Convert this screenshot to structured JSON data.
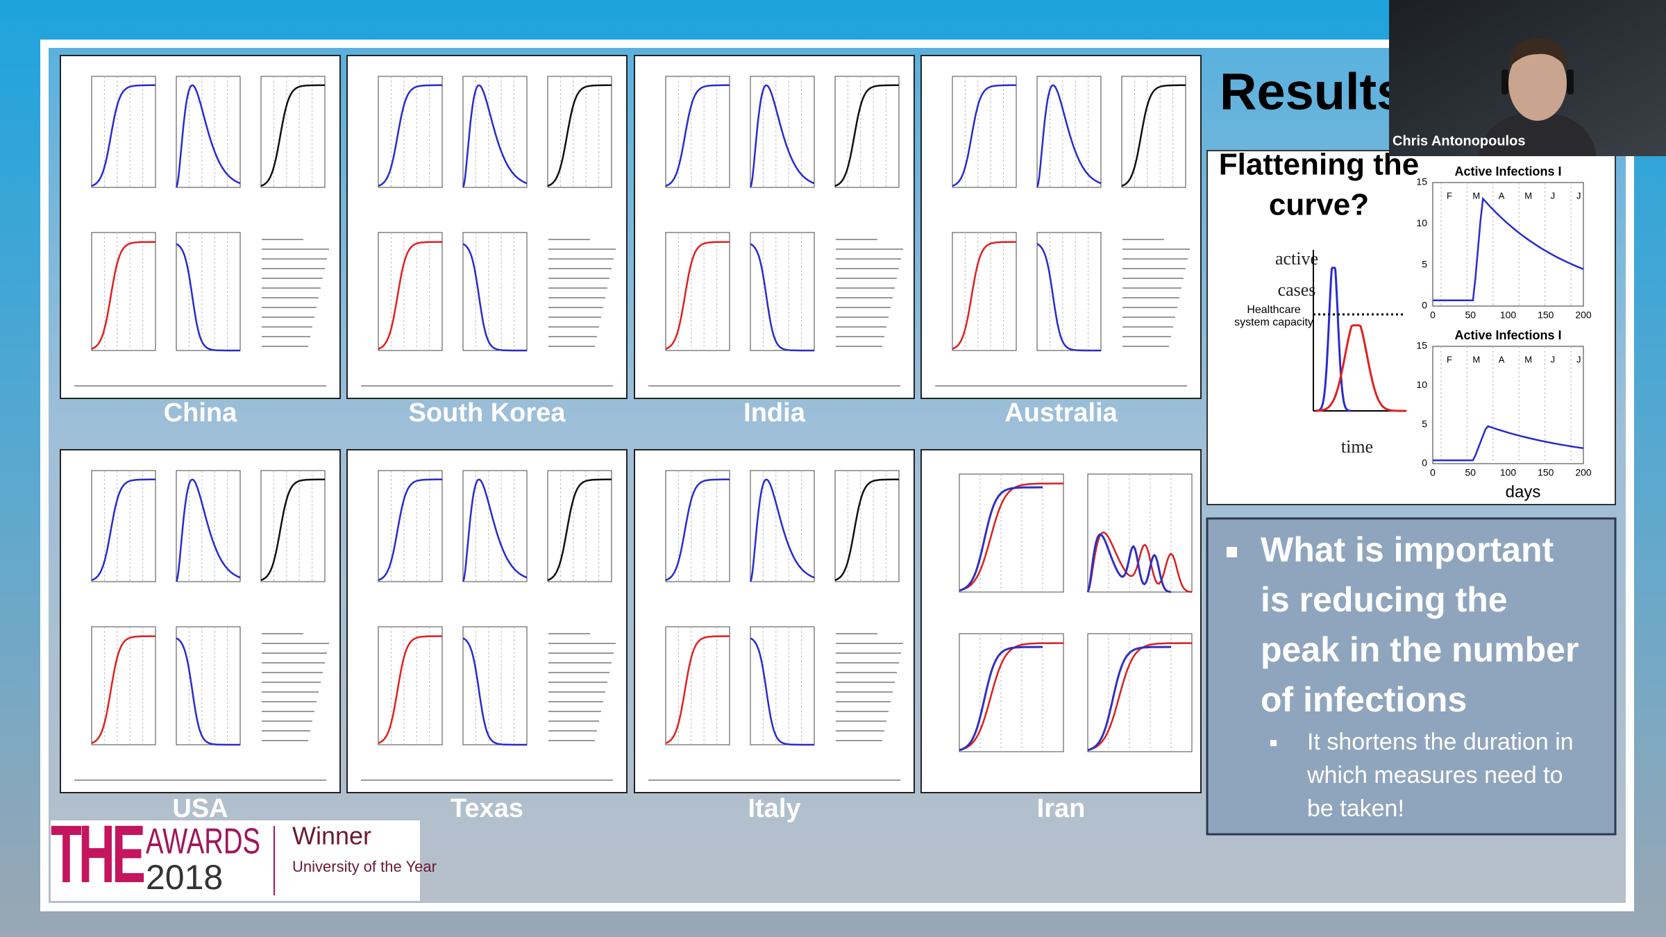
{
  "slide": {
    "title": "Results",
    "panels": [
      {
        "label": "China"
      },
      {
        "label": "South Korea"
      },
      {
        "label": "India"
      },
      {
        "label": "Australia"
      },
      {
        "label": "USA"
      },
      {
        "label": "Texas"
      },
      {
        "label": "Italy"
      },
      {
        "label": "Iran"
      }
    ],
    "flattening": {
      "title_lines": [
        "Flattening the",
        "curve?"
      ],
      "y_label_lines": [
        "active",
        "cases"
      ],
      "capacity_lines": [
        "Healthcare",
        "system capacity"
      ],
      "x_label": "time",
      "plots": [
        {
          "title": "Active Infections I",
          "months": [
            "F",
            "M",
            "A",
            "M",
            "J",
            "J"
          ],
          "xticks": [
            "0",
            "50",
            "100",
            "150",
            "200"
          ],
          "yticks": [
            "15",
            "10",
            "5",
            "0"
          ]
        },
        {
          "title": "Active Infections I",
          "months": [
            "F",
            "M",
            "A",
            "M",
            "J",
            "J"
          ],
          "xticks": [
            "0",
            "50",
            "100",
            "150",
            "200"
          ],
          "yticks": [
            "15",
            "10",
            "5",
            "0"
          ]
        }
      ],
      "days_label": "days"
    },
    "bullet": {
      "lines": [
        "What is important",
        "is reducing the",
        "peak in the number",
        "of infections"
      ],
      "sub_lines": [
        "It shortens the duration in",
        "which measures need to",
        "be taken!"
      ]
    },
    "award": {
      "brand": "THE",
      "awards": "AWARDS",
      "year": "2018",
      "winner": "Winner",
      "subtitle": "University of the Year"
    }
  },
  "webcam": {
    "name": "Chris Antonopoulos"
  }
}
